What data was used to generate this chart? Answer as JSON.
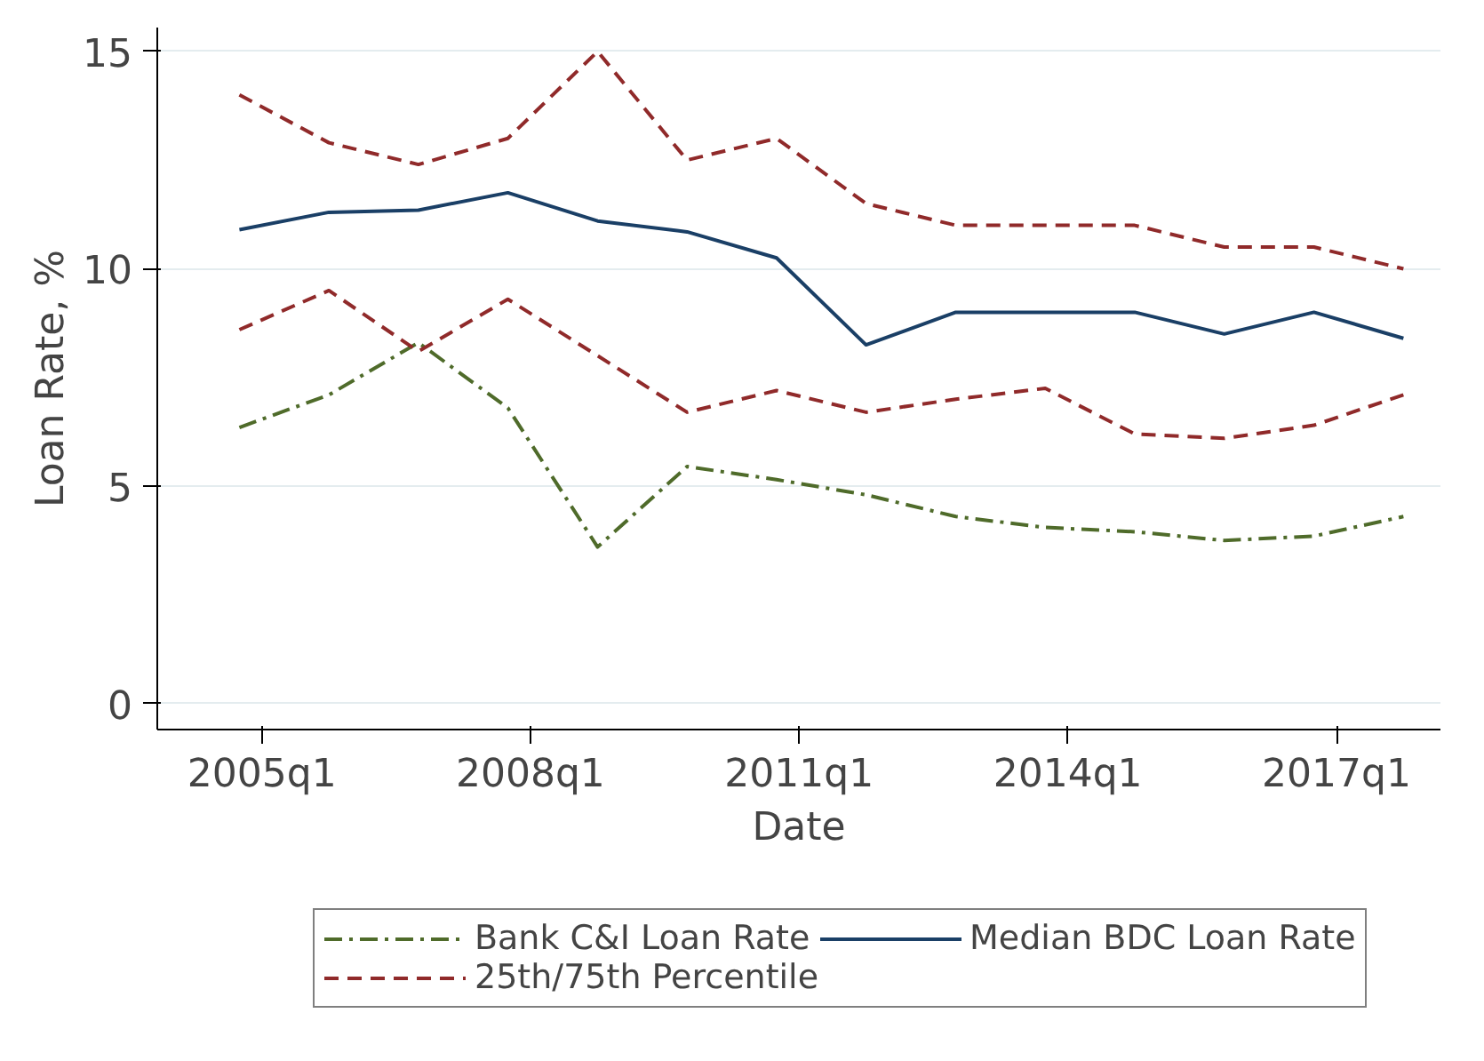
{
  "chart_data": {
    "type": "line",
    "xlabel": "Date",
    "ylabel": "Loan Rate, %",
    "x": [
      "2004-10",
      "2005-10",
      "2006-10",
      "2007-10",
      "2008-10",
      "2009-10",
      "2010-10",
      "2011-10",
      "2012-10",
      "2013-10",
      "2014-10",
      "2015-10",
      "2016-10",
      "2017-10"
    ],
    "series": [
      {
        "name": "Bank C&I Loan Rate",
        "color": "#4f6b2a",
        "line_style": "dashdot",
        "values": [
          6.35,
          7.1,
          8.3,
          6.8,
          3.6,
          5.45,
          5.15,
          4.8,
          4.3,
          4.05,
          3.95,
          3.75,
          3.85,
          4.3
        ]
      },
      {
        "name": "Median BDC Loan Rate",
        "color": "#1a3f66",
        "line_style": "solid",
        "values": [
          10.9,
          11.3,
          11.35,
          11.75,
          11.1,
          10.85,
          10.25,
          8.25,
          9.0,
          9.0,
          9.0,
          8.5,
          9.0,
          8.4
        ]
      },
      {
        "name": "25th/75th Percentile",
        "color": "#902a2a",
        "line_style": "dashed",
        "values": [
          14.0,
          12.9,
          12.4,
          13.0,
          15.0,
          12.5,
          13.0,
          11.5,
          11.0,
          11.0,
          11.0,
          10.5,
          10.5,
          10.0
        ]
      },
      {
        "color": "#902a2a",
        "line_style": "dashed",
        "values": [
          8.6,
          9.5,
          8.1,
          9.3,
          8.0,
          6.7,
          7.2,
          6.7,
          7.0,
          7.25,
          6.2,
          6.1,
          6.4,
          7.1
        ]
      }
    ],
    "xlim": [
      "2003-11",
      "2018-03"
    ],
    "xticks": [
      {
        "value": "2005-01",
        "label": "2005q1"
      },
      {
        "value": "2008-01",
        "label": "2008q1"
      },
      {
        "value": "2011-01",
        "label": "2011q1"
      },
      {
        "value": "2014-01",
        "label": "2014q1"
      },
      {
        "value": "2017-01",
        "label": "2017q1"
      }
    ],
    "ylim": [
      -0.6,
      15.55
    ],
    "yticks": [
      0,
      5,
      10,
      15
    ],
    "grid": "y",
    "legend": "bottom",
    "marker": "none"
  }
}
